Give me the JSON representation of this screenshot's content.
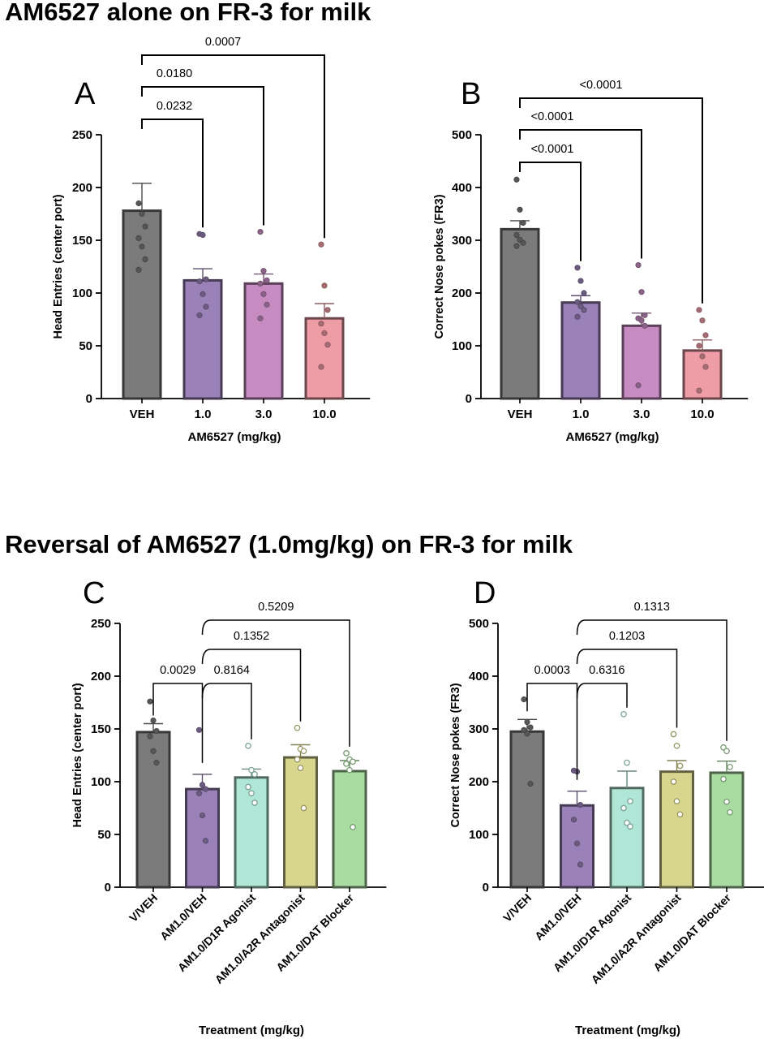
{
  "titles": {
    "top": "AM6527 alone on FR-3 for milk",
    "bottom": "Reversal of  AM6527 (1.0mg/kg) on FR-3 for milk"
  },
  "colors": {
    "veh": "#7b7b7b",
    "am1": "#9a82b8",
    "am3": "#c68cc2",
    "am10": "#ee9ca6",
    "d1r": "#b0e6d6",
    "a2r": "#d8d68e",
    "dat": "#a9dca0"
  },
  "chart_data": [
    {
      "panel": "A",
      "type": "bar",
      "ylabel": "Head Entries (center port)",
      "xlabel": "AM6527 (mg/kg)",
      "categories": [
        "VEH",
        "1.0",
        "3.0",
        "10.0"
      ],
      "values": [
        178,
        112,
        109,
        76
      ],
      "sem": [
        26,
        11,
        9,
        14
      ],
      "ylim": [
        0,
        250
      ],
      "yticks": [
        0,
        50,
        100,
        150,
        200,
        250
      ],
      "points": [
        [
          185,
          175,
          163,
          152,
          144,
          132,
          122
        ],
        [
          156,
          155,
          113,
          111,
          99,
          87,
          79
        ],
        [
          158,
          121,
          112,
          109,
          99,
          89,
          76
        ],
        [
          146,
          107,
          84,
          71,
          62,
          51,
          30
        ]
      ],
      "comparisons": [
        {
          "to": 1,
          "label": "0.0232"
        },
        {
          "to": 2,
          "label": "0.0180"
        },
        {
          "to": 3,
          "label": "0.0007"
        }
      ]
    },
    {
      "panel": "B",
      "type": "bar",
      "ylabel": "Correct Nose pokes (FR3)",
      "xlabel": "AM6527 (mg/kg)",
      "categories": [
        "VEH",
        "1.0",
        "3.0",
        "10.0"
      ],
      "values": [
        321,
        182,
        138,
        91
      ],
      "sem": [
        16,
        13,
        24,
        20
      ],
      "ylim": [
        0,
        500
      ],
      "yticks": [
        0,
        100,
        200,
        300,
        400,
        500
      ],
      "points": [
        [
          415,
          358,
          333,
          310,
          301,
          295,
          289
        ],
        [
          248,
          223,
          200,
          183,
          175,
          168,
          155
        ],
        [
          253,
          202,
          158,
          152,
          148,
          138,
          25
        ],
        [
          168,
          148,
          120,
          100,
          80,
          60,
          15
        ]
      ],
      "comparisons": [
        {
          "to": 1,
          "label": "<0.0001"
        },
        {
          "to": 2,
          "label": "<0.0001"
        },
        {
          "to": 3,
          "label": "<0.0001"
        }
      ]
    },
    {
      "panel": "C",
      "type": "bar",
      "ylabel": "Head Entries (center port)",
      "xlabel": "Treatment (mg/kg)",
      "categories": [
        "V/VEH",
        "AM1.0/VEH",
        "AM1.0/D1R Agonist",
        "AM1.0/A2R Antagonist",
        "AM1.0/DAT Blocker"
      ],
      "values": [
        147,
        93,
        104,
        123,
        110
      ],
      "sem": [
        8,
        14,
        8,
        12,
        10
      ],
      "ylim": [
        0,
        250
      ],
      "yticks": [
        0,
        50,
        100,
        150,
        200,
        250
      ],
      "points": [
        [
          176,
          158,
          148,
          143,
          129,
          118
        ],
        [
          149,
          97,
          93,
          89,
          68,
          44
        ],
        [
          134,
          111,
          107,
          95,
          89,
          80
        ],
        [
          151,
          131,
          129,
          121,
          113,
          75
        ],
        [
          127,
          121,
          119,
          117,
          111,
          57
        ]
      ],
      "comparisons": [
        {
          "from": 0,
          "to": 1,
          "label": "0.0029"
        },
        {
          "from": 1,
          "to": 2,
          "label": "0.8164"
        },
        {
          "from": 1,
          "to": 3,
          "label": "0.1352"
        },
        {
          "from": 1,
          "to": 4,
          "label": "0.5209"
        }
      ]
    },
    {
      "panel": "D",
      "type": "bar",
      "ylabel": "Correct Nose pokes (FR3)",
      "xlabel": "Treatment (mg/kg)",
      "categories": [
        "V/VEH",
        "AM1.0/VEH",
        "AM1.0/D1R Agonist",
        "AM1.0/A2R Antagonist",
        "AM1.0/DAT Blocker"
      ],
      "values": [
        295,
        155,
        188,
        219,
        217
      ],
      "sem": [
        23,
        27,
        32,
        21,
        22
      ],
      "ylim": [
        0,
        500
      ],
      "yticks": [
        0,
        100,
        200,
        300,
        400,
        500
      ],
      "points": [
        [
          356,
          313,
          303,
          298,
          291,
          196
        ],
        [
          221,
          219,
          156,
          128,
          83,
          43
        ],
        [
          328,
          236,
          163,
          150,
          122,
          115
        ],
        [
          290,
          268,
          230,
          200,
          163,
          138
        ],
        [
          265,
          258,
          228,
          205,
          162,
          142
        ]
      ],
      "comparisons": [
        {
          "from": 0,
          "to": 1,
          "label": "0.0003"
        },
        {
          "from": 1,
          "to": 2,
          "label": "0.6316"
        },
        {
          "from": 1,
          "to": 3,
          "label": "0.1203"
        },
        {
          "from": 1,
          "to": 4,
          "label": "0.1313"
        }
      ]
    }
  ]
}
